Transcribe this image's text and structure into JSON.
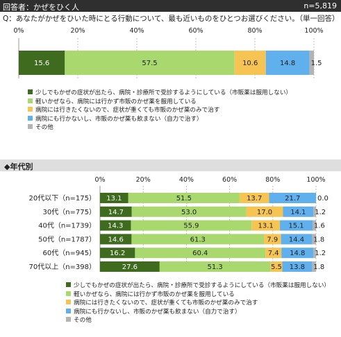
{
  "header": {
    "respondents": "回答者：かぜをひく人",
    "n_total": "n=5,819"
  },
  "question": "Q：あなたがかぜをひいた時にとる行動について、最も近いものをひとつお選びください。（単一回答）",
  "section_title": "◆年代別",
  "colors": [
    "#3f6b1f",
    "#a9d86e",
    "#f6c453",
    "#5fb0ec",
    "#b4b4b4"
  ],
  "categories": [
    "少しでもかぜの症状が出たら、病院・診療所で受診するようにしている（市販薬は服用しない）",
    "軽いかぜなら、病院には行かず市販のかぜ薬を服用している",
    "病院には行きたくないので、症状が重くても市販のかぜ薬のみで治す",
    "病院にも行かないし、市販のかぜ薬も飲まない（自力で治す）",
    "その他"
  ],
  "chart_data": [
    {
      "type": "bar",
      "stacked": true,
      "orientation": "horizontal",
      "xlim": [
        0,
        100
      ],
      "ticks": [
        "0%",
        "20%",
        "40%",
        "60%",
        "80%",
        "100%"
      ],
      "rows": [
        {
          "label": "",
          "values": [
            15.6,
            57.5,
            10.6,
            14.8,
            1.5
          ]
        }
      ]
    },
    {
      "type": "bar",
      "stacked": true,
      "orientation": "horizontal",
      "xlim": [
        0,
        100
      ],
      "ticks": [
        "0%",
        "20%",
        "40%",
        "60%",
        "80%",
        "100%"
      ],
      "rows": [
        {
          "label": "20代以下（n=175）",
          "values": [
            13.1,
            51.5,
            13.7,
            21.7,
            0.0
          ]
        },
        {
          "label": "30代（n=775）",
          "values": [
            14.7,
            53.0,
            17.0,
            14.1,
            1.2
          ]
        },
        {
          "label": "40代（n=1739）",
          "values": [
            14.3,
            55.9,
            13.1,
            15.1,
            1.6
          ]
        },
        {
          "label": "50代（n=1787）",
          "values": [
            14.6,
            61.3,
            7.9,
            14.4,
            1.8
          ]
        },
        {
          "label": "60代（n=945）",
          "values": [
            16.2,
            60.4,
            7.4,
            14.8,
            1.2
          ]
        },
        {
          "label": "70代以上（n=398）",
          "values": [
            27.6,
            51.3,
            5.5,
            13.8,
            1.8
          ]
        }
      ]
    }
  ]
}
